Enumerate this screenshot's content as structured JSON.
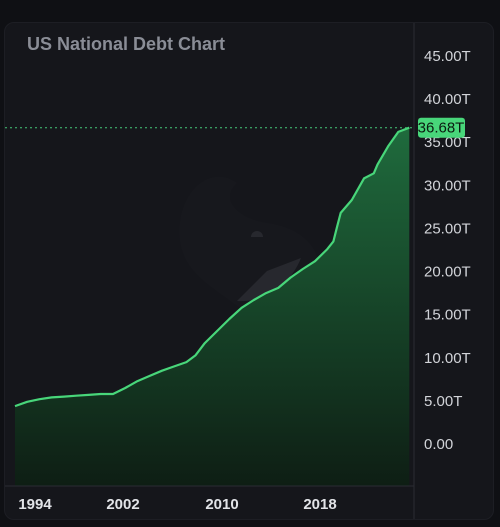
{
  "chart_data": {
    "type": "area",
    "title": "US National Debt Chart",
    "xlabel": "",
    "ylabel": "",
    "x_ticks": [
      "1994",
      "2002",
      "2010",
      "2018"
    ],
    "y_ticks": [
      "0.00",
      "5.00T",
      "10.00T",
      "15.00T",
      "20.00T",
      "25.00T",
      "30.00T",
      "35.00T",
      "40.00T",
      "45.00T"
    ],
    "ylim": [
      0,
      45
    ],
    "xlim": [
      1994,
      2026.5
    ],
    "last_value_label": "36.68T",
    "grid": false,
    "series": [
      {
        "values": [
          {
            "x": 1994.0,
            "y": 4.4
          },
          {
            "x": 1995.0,
            "y": 4.9
          },
          {
            "x": 1996.0,
            "y": 5.2
          },
          {
            "x": 1997.0,
            "y": 5.4
          },
          {
            "x": 1998.0,
            "y": 5.5
          },
          {
            "x": 1999.0,
            "y": 5.6
          },
          {
            "x": 2000.0,
            "y": 5.7
          },
          {
            "x": 2001.0,
            "y": 5.8
          },
          {
            "x": 2002.0,
            "y": 5.8
          },
          {
            "x": 2003.0,
            "y": 6.5
          },
          {
            "x": 2004.0,
            "y": 7.3
          },
          {
            "x": 2005.0,
            "y": 7.9
          },
          {
            "x": 2006.0,
            "y": 8.5
          },
          {
            "x": 2007.0,
            "y": 9.0
          },
          {
            "x": 2008.0,
            "y": 9.5
          },
          {
            "x": 2008.75,
            "y": 10.3
          },
          {
            "x": 2009.5,
            "y": 11.7
          },
          {
            "x": 2010.5,
            "y": 13.1
          },
          {
            "x": 2011.5,
            "y": 14.5
          },
          {
            "x": 2012.5,
            "y": 15.8
          },
          {
            "x": 2013.5,
            "y": 16.7
          },
          {
            "x": 2014.5,
            "y": 17.5
          },
          {
            "x": 2015.5,
            "y": 18.1
          },
          {
            "x": 2016.5,
            "y": 19.3
          },
          {
            "x": 2017.5,
            "y": 20.3
          },
          {
            "x": 2018.5,
            "y": 21.2
          },
          {
            "x": 2019.5,
            "y": 22.6
          },
          {
            "x": 2020.0,
            "y": 23.5
          },
          {
            "x": 2020.3,
            "y": 25.2
          },
          {
            "x": 2020.6,
            "y": 26.8
          },
          {
            "x": 2021.5,
            "y": 28.3
          },
          {
            "x": 2022.5,
            "y": 30.8
          },
          {
            "x": 2023.3,
            "y": 31.4
          },
          {
            "x": 2023.6,
            "y": 32.4
          },
          {
            "x": 2024.5,
            "y": 34.6
          },
          {
            "x": 2025.3,
            "y": 36.2
          },
          {
            "x": 2026.2,
            "y": 36.68
          }
        ]
      }
    ]
  },
  "colors": {
    "line": "#48d67a",
    "area_top": "#1f6b3d",
    "area_bottom": "#0e1e14",
    "price_tag": "#48d67a",
    "dotted_line": "#45c878"
  }
}
